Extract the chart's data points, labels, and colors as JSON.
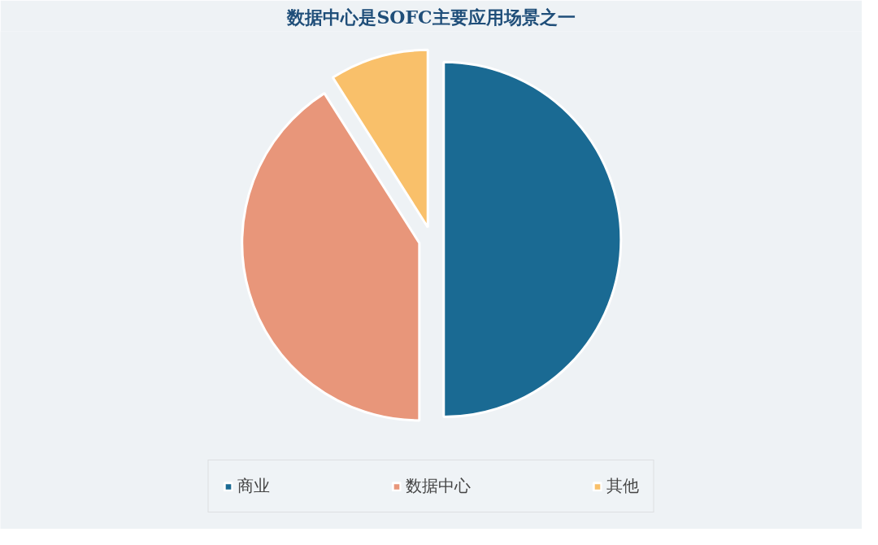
{
  "chart_data": {
    "type": "pie",
    "title": "数据中心是SOFC主要应用场景之一",
    "categories": [
      "商业",
      "数据中心",
      "其他"
    ],
    "values": [
      50,
      41,
      9
    ],
    "colors": [
      "#1a6a93",
      "#e8967a",
      "#f9c06a"
    ],
    "legend": "bottom"
  }
}
